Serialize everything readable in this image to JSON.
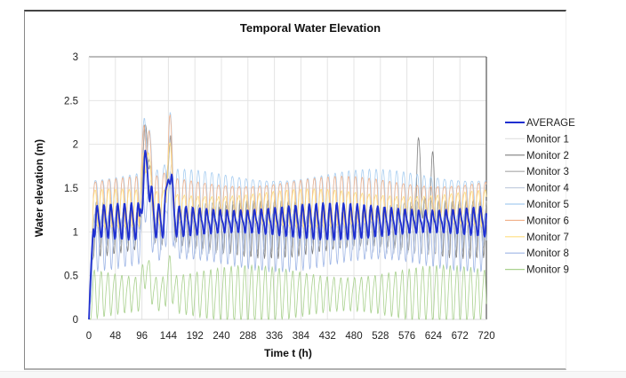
{
  "chart_data": {
    "type": "line",
    "title": "Temporal Water Elevation",
    "xlabel": "Time t (h)",
    "ylabel": "Water elevation (m)",
    "xlim": [
      0,
      720
    ],
    "ylim": [
      0,
      3
    ],
    "xticks": [
      0,
      48,
      96,
      144,
      192,
      240,
      288,
      336,
      384,
      432,
      480,
      528,
      576,
      624,
      672,
      720
    ],
    "yticks": [
      0,
      0.5,
      1,
      1.5,
      2,
      2.5,
      3
    ],
    "ytick_labels": [
      "0",
      "0.5",
      "1",
      "1.5",
      "2",
      "2.5",
      "3"
    ],
    "grid": true,
    "legend_position": "right",
    "tidal_period_h": 12.4,
    "event_window_h": [
      96,
      150
    ],
    "series": [
      {
        "name": "AVERAGE",
        "color": "#1f2fd0",
        "mean": 1.12,
        "amplitude": 0.18,
        "peak": 1.95,
        "bold": true
      },
      {
        "name": "Monitor 1",
        "color": "#e2e2e2",
        "mean": 1.15,
        "amplitude": 0.22,
        "peak": 2.0
      },
      {
        "name": "Monitor 2",
        "color": "#7f7f7f",
        "mean": 1.05,
        "amplitude": 0.3,
        "peak": 2.35,
        "late_peak": 2.12
      },
      {
        "name": "Monitor 3",
        "color": "#a9a9a9",
        "mean": 1.08,
        "amplitude": 0.28,
        "peak": 2.3
      },
      {
        "name": "Monitor 4",
        "color": "#c5cfe0",
        "mean": 1.0,
        "amplitude": 0.2,
        "peak": 1.8
      },
      {
        "name": "Monitor 5",
        "color": "#a7cdf0",
        "mean": 1.45,
        "amplitude": 0.28,
        "peak": 2.5
      },
      {
        "name": "Monitor 6",
        "color": "#f2b48f",
        "mean": 1.4,
        "amplitude": 0.25,
        "peak": 2.45
      },
      {
        "name": "Monitor 7",
        "color": "#ffdf80",
        "mean": 1.3,
        "amplitude": 0.2,
        "peak": 2.1
      },
      {
        "name": "Monitor 8",
        "color": "#9fb6e6",
        "mean": 0.9,
        "amplitude": 0.3,
        "peak": 1.6
      },
      {
        "name": "Monitor 9",
        "color": "#a9d18e",
        "mean": 0.3,
        "amplitude": 0.3,
        "peak": 0.75
      }
    ]
  }
}
